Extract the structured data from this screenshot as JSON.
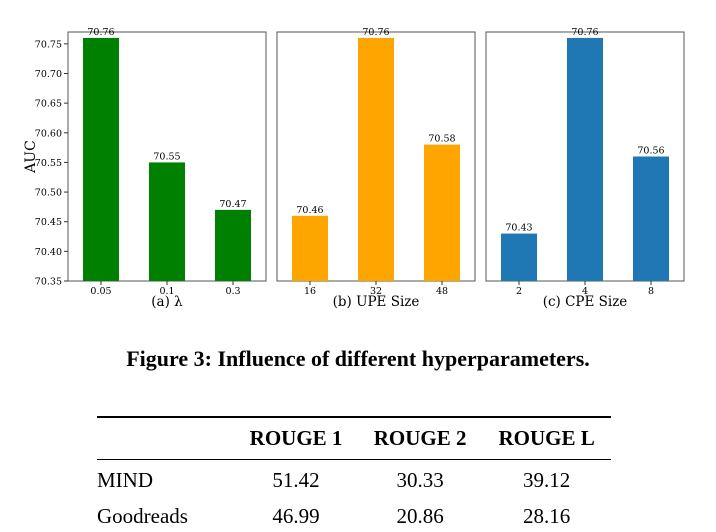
{
  "chart_data": [
    {
      "type": "bar",
      "caption": "(a) λ",
      "ylabel": "AUC",
      "ylim": [
        70.35,
        70.77
      ],
      "yticks": [
        "70.35",
        "70.40",
        "70.45",
        "70.50",
        "70.55",
        "70.60",
        "70.65",
        "70.70",
        "70.75"
      ],
      "color": "#008000",
      "categories": [
        "0.05",
        "0.1",
        "0.3"
      ],
      "values": [
        70.76,
        70.55,
        70.47
      ],
      "labels": [
        "70.76",
        "70.55",
        "70.47"
      ]
    },
    {
      "type": "bar",
      "caption": "(b) UPE Size",
      "ylim": [
        70.35,
        70.77
      ],
      "color": "#ffa500",
      "categories": [
        "16",
        "32",
        "48"
      ],
      "values": [
        70.46,
        70.76,
        70.58
      ],
      "labels": [
        "70.46",
        "70.76",
        "70.58"
      ]
    },
    {
      "type": "bar",
      "caption": "(c) CPE Size",
      "ylim": [
        70.35,
        70.77
      ],
      "color": "#1f77b4",
      "categories": [
        "2",
        "4",
        "8"
      ],
      "values": [
        70.43,
        70.76,
        70.56
      ],
      "labels": [
        "70.43",
        "70.76",
        "70.56"
      ]
    }
  ],
  "figure_caption": "Figure 3: Influence of different hyperparameters.",
  "table": {
    "headers": [
      "",
      "ROUGE 1",
      "ROUGE 2",
      "ROUGE L"
    ],
    "rows": [
      [
        "MIND",
        "51.42",
        "30.33",
        "39.12"
      ],
      [
        "Goodreads",
        "46.99",
        "20.86",
        "28.16"
      ]
    ]
  }
}
